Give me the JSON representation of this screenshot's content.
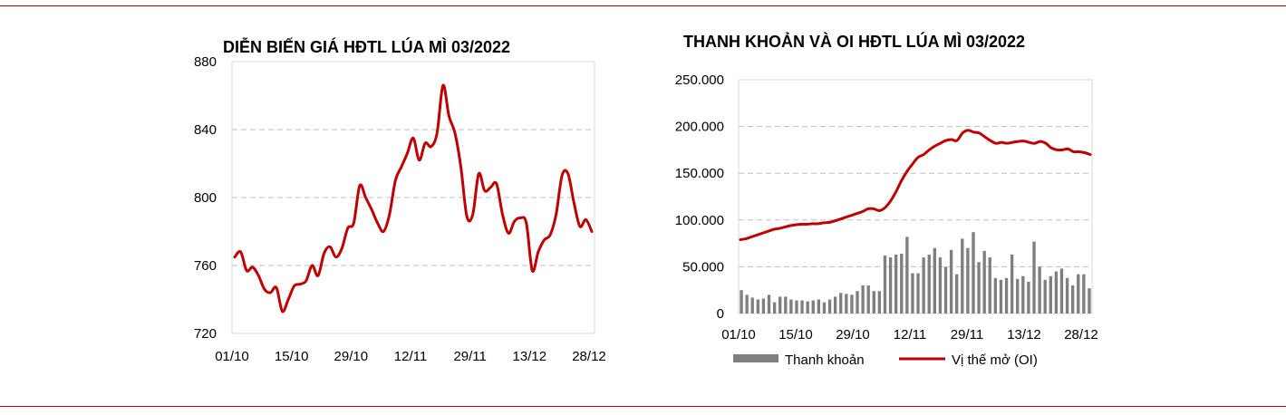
{
  "colors": {
    "rule": "#c00000",
    "line": "#c00000",
    "bar": "#7f7f7f",
    "grid": "#bfbfbf",
    "plot_border": "#d9d9d9"
  },
  "chart_data": [
    {
      "type": "line",
      "title": "DIỄN BIẾN GIÁ HĐTL LÚA MÌ 03/2022",
      "xlabel": "",
      "ylabel": "",
      "ylim": [
        720,
        880
      ],
      "yticks": [
        "880",
        "840",
        "800",
        "760",
        "720"
      ],
      "xtick_labels": [
        "01/10",
        "15/10",
        "29/10",
        "12/11",
        "29/11",
        "13/12",
        "28/12"
      ],
      "grid": true,
      "series": [
        {
          "values": [
            765,
            768,
            757,
            759,
            754,
            746,
            744,
            747,
            733,
            740,
            748,
            749,
            751,
            760,
            754,
            767,
            771,
            765,
            770,
            782,
            785,
            807,
            800,
            793,
            785,
            780,
            790,
            810,
            818,
            826,
            835,
            822,
            832,
            830,
            838,
            866,
            848,
            838,
            818,
            789,
            790,
            814,
            804,
            806,
            808,
            790,
            779,
            786,
            788,
            785,
            757,
            768,
            775,
            778,
            790,
            813,
            814,
            797,
            783,
            787,
            780
          ]
        }
      ]
    },
    {
      "type": "bar+line",
      "title": "THANH KHOẢN VÀ OI HĐTL LÚA MÌ  03/2022",
      "ylim": [
        0,
        250000
      ],
      "yticks": [
        "250.000",
        "200.000",
        "150.000",
        "100.000",
        "50.000",
        "0"
      ],
      "xtick_labels": [
        "01/10",
        "15/10",
        "29/10",
        "12/11",
        "29/11",
        "13/12",
        "28/12"
      ],
      "legend_position": "bottom",
      "grid": true,
      "series": [
        {
          "name": "Thanh khoản",
          "type": "bar",
          "values": [
            25000,
            20000,
            17000,
            15000,
            16000,
            20000,
            12000,
            18000,
            18000,
            15000,
            14000,
            14000,
            13000,
            14000,
            15000,
            12000,
            15000,
            18000,
            22000,
            21000,
            20000,
            24000,
            30000,
            30000,
            24000,
            24000,
            62000,
            60000,
            63000,
            64000,
            82000,
            43000,
            43000,
            60000,
            63000,
            70000,
            60000,
            50000,
            68000,
            42000,
            80000,
            70000,
            87000,
            55000,
            67000,
            60000,
            38000,
            36000,
            38000,
            63000,
            37000,
            40000,
            34000,
            77000,
            50000,
            36000,
            40000,
            45000,
            48000,
            38000,
            30000,
            42000,
            42000,
            27000
          ]
        },
        {
          "name": "Vị thế mở (OI)",
          "type": "line",
          "values": [
            79000,
            80000,
            82000,
            84000,
            86000,
            88000,
            90000,
            91000,
            92500,
            94000,
            95000,
            95500,
            95500,
            96000,
            96000,
            97000,
            97500,
            99000,
            101000,
            103000,
            105000,
            107000,
            109000,
            112000,
            112000,
            110000,
            113000,
            120000,
            130000,
            142000,
            152000,
            160000,
            167000,
            170000,
            175000,
            179000,
            182000,
            185000,
            186000,
            185000,
            193000,
            196000,
            194000,
            193000,
            189000,
            185000,
            182000,
            183000,
            182000,
            183000,
            184000,
            184500,
            183000,
            182000,
            184000,
            182000,
            177000,
            175000,
            175000,
            176000,
            173000,
            173000,
            172000,
            170000
          ]
        }
      ]
    }
  ]
}
